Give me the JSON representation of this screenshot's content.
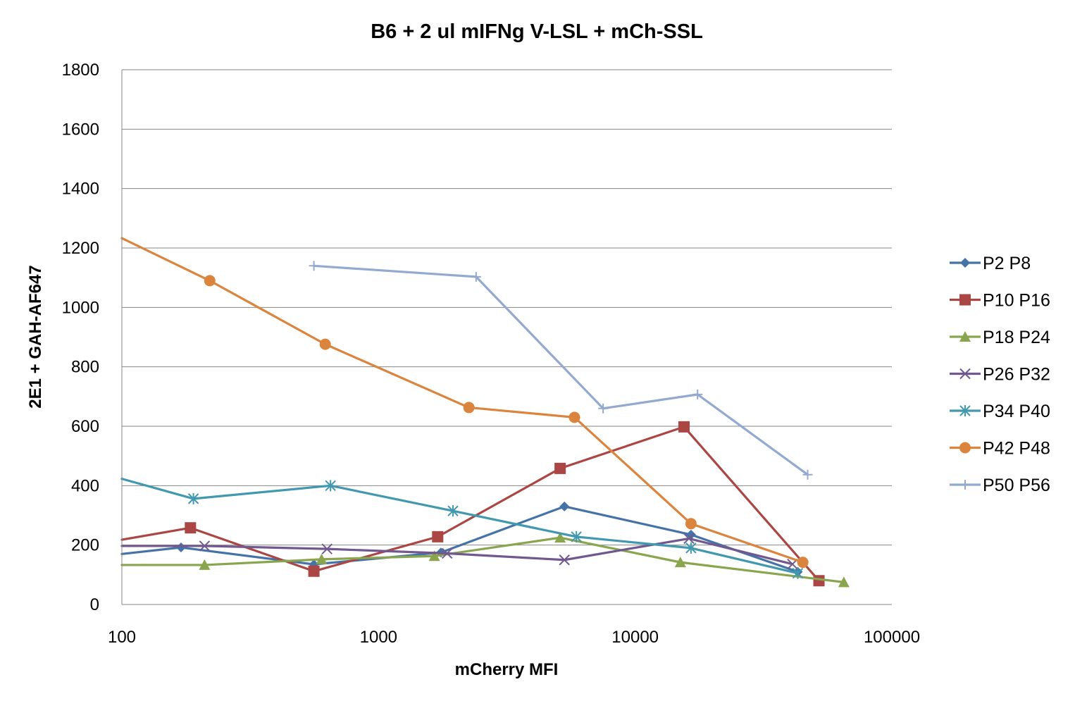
{
  "chart_data": {
    "type": "line",
    "title": "B6 + 2 ul mIFNg V-LSL + mCh-SSL",
    "xlabel": "mCherry MFI",
    "ylabel": "2E1 + GAH-AF647",
    "xscale": "log",
    "xlim": [
      100,
      100000
    ],
    "ylim": [
      0,
      1800
    ],
    "xticks": [
      "100",
      "1000",
      "10000",
      "100000"
    ],
    "yticks": [
      "0",
      "200",
      "400",
      "600",
      "800",
      "1000",
      "1200",
      "1400",
      "1600",
      "1800"
    ],
    "grid": "horizontal",
    "legend_position": "right",
    "series": [
      {
        "name": "P2 P8",
        "color": "#4572a7",
        "marker": "diamond",
        "points": [
          [
            100,
            170
          ],
          [
            170,
            192
          ],
          [
            560,
            135
          ],
          [
            1750,
            175
          ],
          [
            5300,
            330
          ],
          [
            16500,
            235
          ],
          [
            43000,
            110
          ]
        ]
      },
      {
        "name": "P10 P16",
        "color": "#aa4643",
        "marker": "square",
        "points": [
          [
            100,
            218
          ],
          [
            185,
            258
          ],
          [
            560,
            112
          ],
          [
            1700,
            228
          ],
          [
            5100,
            458
          ],
          [
            15500,
            598
          ],
          [
            52000,
            80
          ]
        ]
      },
      {
        "name": "P18 P24",
        "color": "#89a54e",
        "marker": "triangle",
        "points": [
          [
            100,
            133
          ],
          [
            210,
            133
          ],
          [
            600,
            152
          ],
          [
            1650,
            163
          ],
          [
            5100,
            225
          ],
          [
            15000,
            142
          ],
          [
            65000,
            75
          ]
        ]
      },
      {
        "name": "P26 P32",
        "color": "#71588f",
        "marker": "x",
        "points": [
          [
            100,
            197
          ],
          [
            210,
            197
          ],
          [
            630,
            187
          ],
          [
            1850,
            172
          ],
          [
            5300,
            150
          ],
          [
            16200,
            222
          ],
          [
            41000,
            136
          ]
        ]
      },
      {
        "name": "P34 P40",
        "color": "#4198af",
        "marker": "star",
        "points": [
          [
            100,
            423
          ],
          [
            190,
            356
          ],
          [
            650,
            400
          ],
          [
            1950,
            315
          ],
          [
            5900,
            228
          ],
          [
            16500,
            190
          ],
          [
            43000,
            105
          ]
        ]
      },
      {
        "name": "P42 P48",
        "color": "#db843d",
        "marker": "circle",
        "points": [
          [
            100,
            1233
          ],
          [
            220,
            1090
          ],
          [
            620,
            876
          ],
          [
            2250,
            663
          ],
          [
            5800,
            630
          ],
          [
            16500,
            272
          ],
          [
            45000,
            142
          ]
        ]
      },
      {
        "name": "P50 P56",
        "color": "#93a9cf",
        "marker": "plus",
        "points": [
          [
            560,
            1140
          ],
          [
            2400,
            1103
          ],
          [
            7500,
            660
          ],
          [
            17500,
            707
          ],
          [
            47000,
            437
          ]
        ]
      }
    ]
  }
}
